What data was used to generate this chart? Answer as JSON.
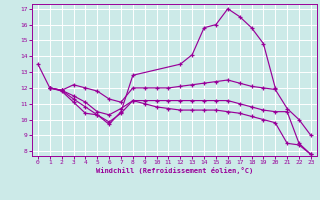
{
  "bg_color": "#cceae8",
  "line_color": "#990099",
  "grid_color": "#ffffff",
  "xlim": [
    -0.5,
    23.5
  ],
  "ylim": [
    7.7,
    17.3
  ],
  "yticks": [
    8,
    9,
    10,
    11,
    12,
    13,
    14,
    15,
    16,
    17
  ],
  "xticks": [
    0,
    1,
    2,
    3,
    4,
    5,
    6,
    7,
    8,
    9,
    10,
    11,
    12,
    13,
    14,
    15,
    16,
    17,
    18,
    19,
    20,
    21,
    22,
    23
  ],
  "xlabel": "Windchill (Refroidissement éolien,°C)",
  "line1_x": [
    0,
    1,
    2,
    3,
    4,
    5,
    6,
    7,
    8,
    12,
    13,
    14,
    15,
    16,
    17,
    18,
    19,
    20
  ],
  "line1_y": [
    13.5,
    12.0,
    11.8,
    11.1,
    10.4,
    10.3,
    9.7,
    10.5,
    12.8,
    13.5,
    14.1,
    15.8,
    16.0,
    17.0,
    16.5,
    15.8,
    14.8,
    12.0
  ],
  "line2_x": [
    1,
    2,
    3,
    4,
    5,
    6,
    7,
    8,
    9,
    10,
    11,
    12,
    13,
    14,
    15,
    16,
    17,
    18,
    19,
    20,
    21,
    22,
    23
  ],
  "line2_y": [
    12.0,
    11.85,
    12.2,
    12.0,
    11.8,
    11.3,
    11.1,
    12.0,
    12.0,
    12.0,
    12.0,
    12.1,
    12.2,
    12.3,
    12.4,
    12.5,
    12.3,
    12.1,
    12.0,
    11.9,
    10.7,
    10.0,
    9.0
  ],
  "line3_x": [
    1,
    2,
    3,
    4,
    5,
    6,
    7,
    8,
    9,
    10,
    11,
    12,
    13,
    14,
    15,
    16,
    17,
    18,
    19,
    20,
    21,
    22,
    23
  ],
  "line3_y": [
    12.0,
    11.85,
    11.5,
    11.1,
    10.5,
    10.3,
    10.7,
    11.2,
    11.2,
    11.2,
    11.2,
    11.2,
    11.2,
    11.2,
    11.2,
    11.2,
    11.0,
    10.8,
    10.6,
    10.5,
    10.5,
    8.5,
    7.8
  ],
  "line4_x": [
    1,
    2,
    3,
    4,
    5,
    6,
    7,
    8,
    9,
    10,
    11,
    12,
    13,
    14,
    15,
    16,
    17,
    18,
    19,
    20,
    21,
    22,
    23
  ],
  "line4_y": [
    12.0,
    11.85,
    11.3,
    10.8,
    10.3,
    9.85,
    10.4,
    11.2,
    11.0,
    10.8,
    10.7,
    10.6,
    10.6,
    10.6,
    10.6,
    10.5,
    10.4,
    10.2,
    10.0,
    9.8,
    8.5,
    8.4,
    7.8
  ]
}
